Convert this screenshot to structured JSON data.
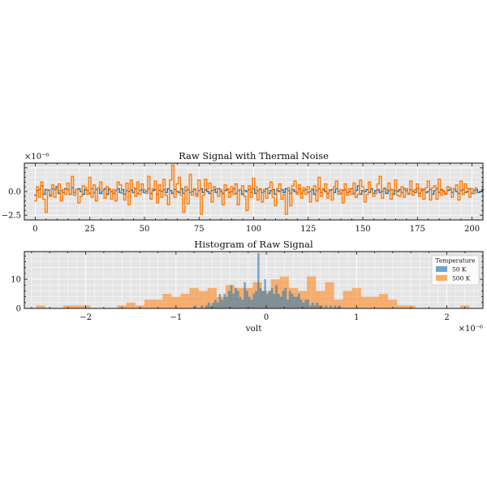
{
  "figure": {
    "background": "#ffffff",
    "axes_facecolor": "#e5e5e5",
    "grid_color": "#ffffff"
  },
  "chart_data": [
    {
      "type": "line",
      "drawstyle": "steps",
      "title": "Raw Signal with Thermal Noise",
      "xlabel": "",
      "ylabel": "",
      "y_multiplier_label": "×10⁻⁶",
      "x_ticks": [
        0,
        25,
        50,
        75,
        100,
        125,
        150,
        175,
        200
      ],
      "y_ticks": [
        {
          "value": 0,
          "label": "0.0"
        },
        {
          "value": -2.5,
          "label": "−2.5"
        }
      ],
      "xlim": [
        -5,
        205
      ],
      "ylim": [
        -3,
        3
      ],
      "grid": true,
      "series": [
        {
          "color": "#1f77b4",
          "x_start": 0,
          "values": [
            -0.4,
            0.1,
            0.2,
            0.6,
            -0.3,
            0.2,
            0.1,
            -0.4,
            0.3,
            0.2,
            0.5,
            -0.2,
            0.1,
            -0.1,
            0.3,
            0.2,
            -0.3,
            0.4,
            -0.1,
            0.2,
            0.3,
            0.0,
            -0.3,
            0.2,
            0.1,
            -0.2,
            0.3,
            -0.1,
            0.2,
            0.4,
            -0.2,
            0.1,
            0.3,
            -0.3,
            0.2,
            0.0,
            -0.2,
            0.1,
            0.3,
            -0.1,
            0.2,
            -0.3,
            0.1,
            0.0,
            0.2,
            -0.1,
            0.3,
            -0.2,
            0.1,
            0.2,
            -0.1,
            0.0,
            0.3,
            -0.2,
            0.1,
            0.2,
            -0.3,
            0.1,
            0.0,
            0.2,
            -0.1,
            0.3,
            0.1,
            -0.2,
            0.2,
            0.0,
            -0.1,
            0.3,
            -0.2,
            0.1,
            0.2,
            -0.1,
            0.0,
            0.2,
            -0.3,
            0.1,
            0.3,
            -0.1,
            0.2,
            0.0,
            -0.2,
            0.1,
            0.2,
            -0.1,
            0.3,
            0.0,
            -0.2,
            0.1,
            0.2,
            -0.1,
            0.0,
            0.3,
            -0.2,
            0.1,
            0.2,
            -0.3,
            0.1,
            0.0,
            0.2,
            -0.1,
            0.3,
            -0.2,
            0.1,
            0.2,
            -0.1,
            0.0,
            0.3,
            -0.2,
            0.1,
            0.2,
            -0.3,
            0.1,
            0.0,
            0.2,
            -0.1,
            0.3,
            0.1,
            -0.2,
            0.2,
            0.0,
            -0.1,
            0.3,
            -0.2,
            0.1,
            0.2,
            -0.1,
            0.0,
            0.2,
            -0.3,
            0.1,
            0.3,
            -0.1,
            0.2,
            0.0,
            -0.2,
            0.1,
            0.2,
            -0.1,
            0.3,
            0.0,
            -0.2,
            0.1,
            0.2,
            -0.1,
            0.0,
            0.3,
            -0.2,
            0.1,
            0.6,
            -0.3,
            0.1,
            0.0,
            0.2,
            -0.1,
            0.3,
            -0.2,
            0.1,
            0.2,
            -0.1,
            0.0,
            0.3,
            -0.2,
            0.1,
            0.2,
            -0.3,
            0.1,
            0.0,
            0.2,
            -0.1,
            0.3,
            0.1,
            -0.2,
            0.2,
            0.0,
            -0.1,
            0.3,
            -0.2,
            0.1,
            0.2,
            -0.1,
            0.0,
            0.2,
            -0.3,
            0.1,
            0.3,
            -0.1,
            0.2,
            0.0,
            -0.2,
            0.1,
            0.2,
            -0.1,
            0.3,
            0.0,
            -0.2,
            0.1,
            0.2,
            -0.1,
            0.0,
            0.3,
            -0.2,
            0.1,
            0.2,
            -0.1,
            0.0,
            0.2
          ]
        },
        {
          "color": "#ff7f0e",
          "x_start": 0,
          "values": [
            -1.0,
            0.5,
            -0.6,
            1.0,
            -0.8,
            -2.2,
            0.2,
            -0.5,
            0.7,
            -0.6,
            0.3,
            0.8,
            -1.0,
            0.2,
            -0.3,
            0.9,
            -0.3,
            1.6,
            -0.4,
            0.2,
            -1.2,
            -0.5,
            0.6,
            0.4,
            -0.3,
            1.5,
            -0.6,
            0.7,
            -1.0,
            0.4,
            1.0,
            0.1,
            -0.7,
            0.5,
            0.3,
            -0.8,
            0.2,
            -1.0,
            1.0,
            0.7,
            -0.2,
            -0.9,
            0.9,
            -1.4,
            1.2,
            0.4,
            -0.5,
            1.0,
            -0.3,
            0.8,
            0.2,
            -0.2,
            1.6,
            -0.8,
            0.3,
            1.1,
            -1.2,
            0.7,
            -0.6,
            1.3,
            -0.4,
            -1.4,
            1.2,
            2.8,
            -0.6,
            0.8,
            1.5,
            -0.4,
            -2.2,
            0.5,
            -1.3,
            1.8,
            -0.4,
            0.3,
            -0.5,
            1.2,
            -2.4,
            -0.4,
            1.3,
            0.3,
            0.9,
            -1.1,
            0.5,
            0.3,
            -0.5,
            0.2,
            -1.4,
            0.7,
            0.3,
            -0.6,
            0.5,
            -0.3,
            0.8,
            -1.4,
            0.2,
            0.6,
            -0.5,
            -2.0,
            0.6,
            -0.6,
            1.4,
            0.5,
            -0.9,
            0.3,
            -1.1,
            0.2,
            -0.7,
            0.4,
            1.0,
            -0.6,
            -1.5,
            0.3,
            0.8,
            -0.8,
            -0.3,
            -2.4,
            0.4,
            -1.5,
            0.6,
            1.1,
            -0.3,
            0.7,
            -0.7,
            0.4,
            -0.3,
            0.5,
            -1.1,
            0.3,
            0.6,
            -1.0,
            1.5,
            -0.5,
            0.3,
            0.8,
            -0.7,
            0.2,
            -0.9,
            0.5,
            1.1,
            -0.3,
            0.2,
            -1.2,
            0.8,
            -0.4,
            0.3,
            -0.3,
            0.9,
            -0.6,
            -0.3,
            1.2,
            0.5,
            -1.1,
            -0.3,
            1.0,
            0.2,
            -0.5,
            -0.2,
            0.8,
            1.6,
            -0.7,
            0.4,
            0.2,
            0.9,
            -0.8,
            0.2,
            1.2,
            -0.4,
            -0.5,
            0.5,
            -0.6,
            0.3,
            -0.3,
            1.1,
            -0.4,
            0.2,
            0.8,
            -0.5,
            0.3,
            -0.8,
            0.4,
            1.1,
            -0.9,
            0.4,
            0.6,
            -0.8,
            1.3,
            -0.4,
            0.1,
            -0.3,
            0.5,
            0.4,
            -0.6,
            0.3,
            0.7,
            -0.9,
            1.1,
            -0.3,
            0.8,
            0.3,
            -0.6,
            0.3,
            -0.2,
            0.4
          ]
        }
      ]
    },
    {
      "type": "histogram",
      "title": "Histogram of Raw Signal",
      "xlabel": "volt",
      "ylabel": "",
      "x_multiplier_label": "×10⁻⁶",
      "x_ticks": [
        {
          "value": -2,
          "label": "−2"
        },
        {
          "value": -1,
          "label": "−1"
        },
        {
          "value": 0,
          "label": "0"
        },
        {
          "value": 1,
          "label": "1"
        },
        {
          "value": 2,
          "label": "2"
        }
      ],
      "y_ticks": [
        0,
        10
      ],
      "xlim": [
        -2.68,
        2.4
      ],
      "ylim": [
        0,
        19.5
      ],
      "grid": true,
      "legend": {
        "title": "Temperature",
        "placement": "upper right"
      },
      "series": [
        {
          "name": "50 K",
          "color": "#1f77b4",
          "opacity": 0.55,
          "bin_start": -0.8,
          "bin_width": 0.025,
          "counts": [
            1,
            0,
            0,
            1,
            0,
            1,
            2,
            1,
            2,
            3,
            2,
            5,
            3,
            5,
            4,
            6,
            8,
            5,
            7,
            6,
            4,
            3,
            9,
            6,
            4,
            3,
            5,
            6,
            19,
            7,
            6,
            10,
            5,
            6,
            7,
            5,
            8,
            5,
            4,
            6,
            7,
            3,
            6,
            5,
            4,
            4,
            5,
            3,
            2,
            3,
            3,
            1,
            2,
            1,
            2,
            1,
            1,
            0,
            1,
            0,
            1,
            0,
            1,
            0,
            1
          ]
        },
        {
          "name": "500 K",
          "color": "#ff7f0e",
          "opacity": 0.55,
          "bin_start": -2.55,
          "bin_width": 0.1,
          "counts": [
            1,
            0,
            0,
            1,
            1,
            1,
            0,
            0,
            0,
            1,
            2,
            1,
            3,
            3,
            5,
            4,
            5,
            7,
            6,
            7,
            4,
            8,
            7,
            7,
            9,
            6,
            10,
            11,
            7,
            6,
            11,
            6,
            9,
            3,
            6,
            7,
            4,
            4,
            5,
            3,
            1,
            1,
            0,
            0,
            0,
            0,
            0,
            1
          ]
        }
      ]
    }
  ]
}
